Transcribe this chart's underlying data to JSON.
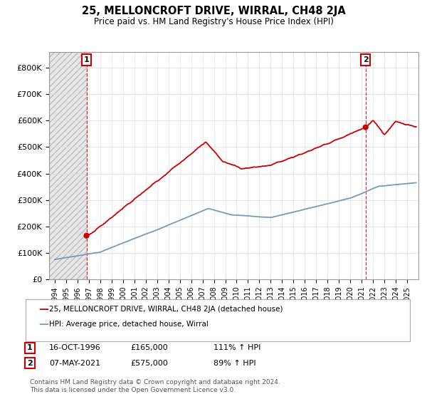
{
  "title": "25, MELLONCROFT DRIVE, WIRRAL, CH48 2JA",
  "subtitle": "Price paid vs. HM Land Registry's House Price Index (HPI)",
  "yticks": [
    0,
    100000,
    200000,
    300000,
    400000,
    500000,
    600000,
    700000,
    800000
  ],
  "ytick_labels": [
    "£0",
    "£100K",
    "£200K",
    "£300K",
    "£400K",
    "£500K",
    "£600K",
    "£700K",
    "£800K"
  ],
  "sale1_date": 1996.79,
  "sale1_price": 165000,
  "sale2_date": 2021.35,
  "sale2_price": 575000,
  "red_color": "#cc0000",
  "blue_color": "#7799bb",
  "grid_color": "#dddddd",
  "legend_label_red": "25, MELLONCROFT DRIVE, WIRRAL, CH48 2JA (detached house)",
  "legend_label_blue": "HPI: Average price, detached house, Wirral",
  "footer": "Contains HM Land Registry data © Crown copyright and database right 2024.\nThis data is licensed under the Open Government Licence v3.0.",
  "xmin": 1993.5,
  "xmax": 2026.0
}
